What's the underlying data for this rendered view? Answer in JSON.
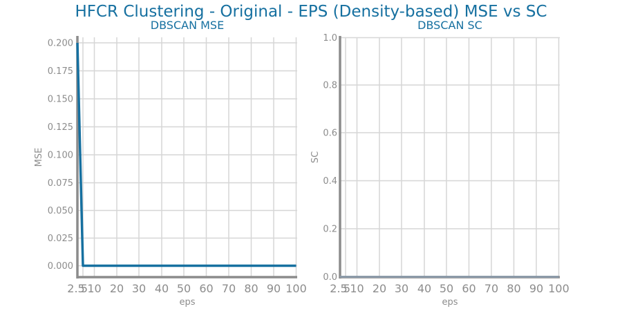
{
  "figure": {
    "title": "HFCR Clustering - Original - EPS (Density-based) MSE vs SC"
  },
  "chart_data": [
    {
      "type": "line",
      "title": "DBSCAN MSE",
      "xlabel": "eps",
      "ylabel": "MSE",
      "x_ticks": [
        "2.5",
        "5",
        "10",
        "20",
        "30",
        "40",
        "50",
        "60",
        "70",
        "80",
        "90",
        "100"
      ],
      "y_ticks": [
        "0.000",
        "0.025",
        "0.050",
        "0.075",
        "0.100",
        "0.125",
        "0.150",
        "0.175",
        "0.200"
      ],
      "xlim": [
        2.5,
        100
      ],
      "ylim": [
        -0.011,
        0.209
      ],
      "grid": true,
      "series": [
        {
          "color": "#1670a0",
          "x": [
            2.5,
            5,
            10,
            20,
            30,
            40,
            50,
            60,
            70,
            80,
            90,
            100
          ],
          "y": [
            0.2,
            0.0,
            0.0,
            0.0,
            0.0,
            0.0,
            0.0,
            0.0,
            0.0,
            0.0,
            0.0,
            0.0
          ]
        }
      ]
    },
    {
      "type": "line",
      "title": "DBSCAN SC",
      "xlabel": "eps",
      "ylabel": "SC",
      "x_ticks": [
        "2.5",
        "5",
        "10",
        "20",
        "30",
        "40",
        "50",
        "60",
        "70",
        "80",
        "90",
        "100"
      ],
      "y_ticks": [
        "0.0",
        "0.2",
        "0.4",
        "0.6",
        "0.8",
        "1.0"
      ],
      "xlim": [
        2.5,
        100
      ],
      "ylim": [
        0,
        1
      ],
      "grid": true,
      "series": [
        {
          "color": "#1670a0",
          "x": [
            2.5,
            5,
            10,
            20,
            30,
            40,
            50,
            60,
            70,
            80,
            90,
            100
          ],
          "y": [
            0,
            0,
            0,
            0,
            0,
            0,
            0,
            0,
            0,
            0,
            0,
            0
          ]
        }
      ]
    }
  ]
}
